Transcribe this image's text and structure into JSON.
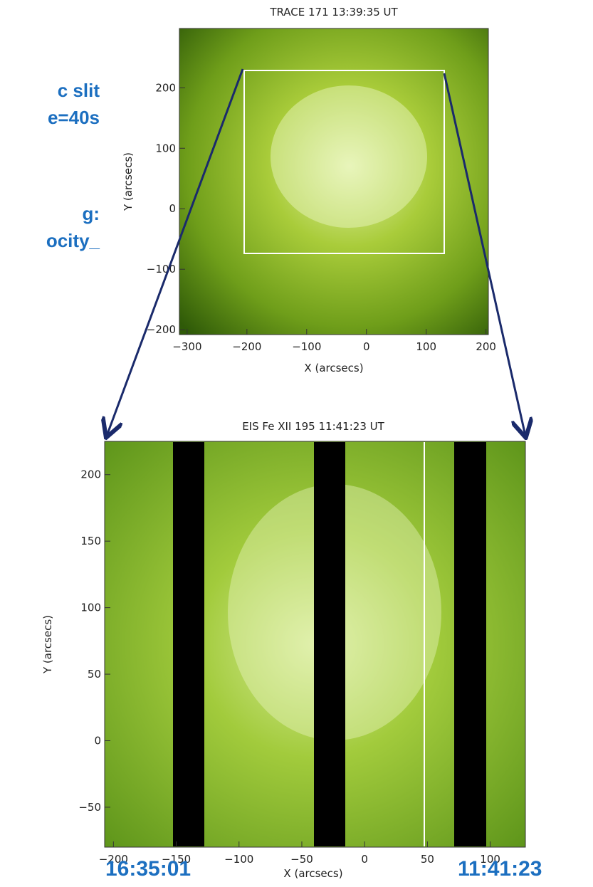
{
  "side_text": [
    "c slit",
    "e=40s",
    "g:",
    "ocity_"
  ],
  "top_image": {
    "title": "TRACE 171   13:39:35 UT",
    "x_label": "X (arcsecs)",
    "y_label": "Y (arcsecs)",
    "xlim": [
      -313,
      204
    ],
    "ylim": [
      -208,
      298
    ],
    "xticks": [
      {
        "value": -300,
        "label": "−300"
      },
      {
        "value": -200,
        "label": "−200"
      },
      {
        "value": -100,
        "label": "−100"
      },
      0,
      100,
      200
    ],
    "yticks": [
      {
        "value": -200,
        "label": "−200"
      },
      {
        "value": -100,
        "label": "−100"
      },
      0,
      100,
      200
    ]
  },
  "bottom_image": {
    "title": "EIS Fe XII 195 11:41:23 UT",
    "x_label": "X (arcsecs)",
    "y_label": "Y (arcsecs)",
    "xlim": [
      -207,
      128
    ],
    "ylim": [
      -80,
      225
    ],
    "xticks": [
      {
        "value": -200,
        "label": "−200"
      },
      {
        "value": -150,
        "label": "−150"
      },
      {
        "value": -100,
        "label": "−100"
      },
      {
        "value": -50,
        "label": "−50"
      },
      0,
      50,
      100
    ],
    "yticks": [
      {
        "value": -50,
        "label": "−50"
      },
      0,
      50,
      100,
      150,
      200
    ]
  },
  "start_time": "16:35:01",
  "end_time": "11:41:23"
}
